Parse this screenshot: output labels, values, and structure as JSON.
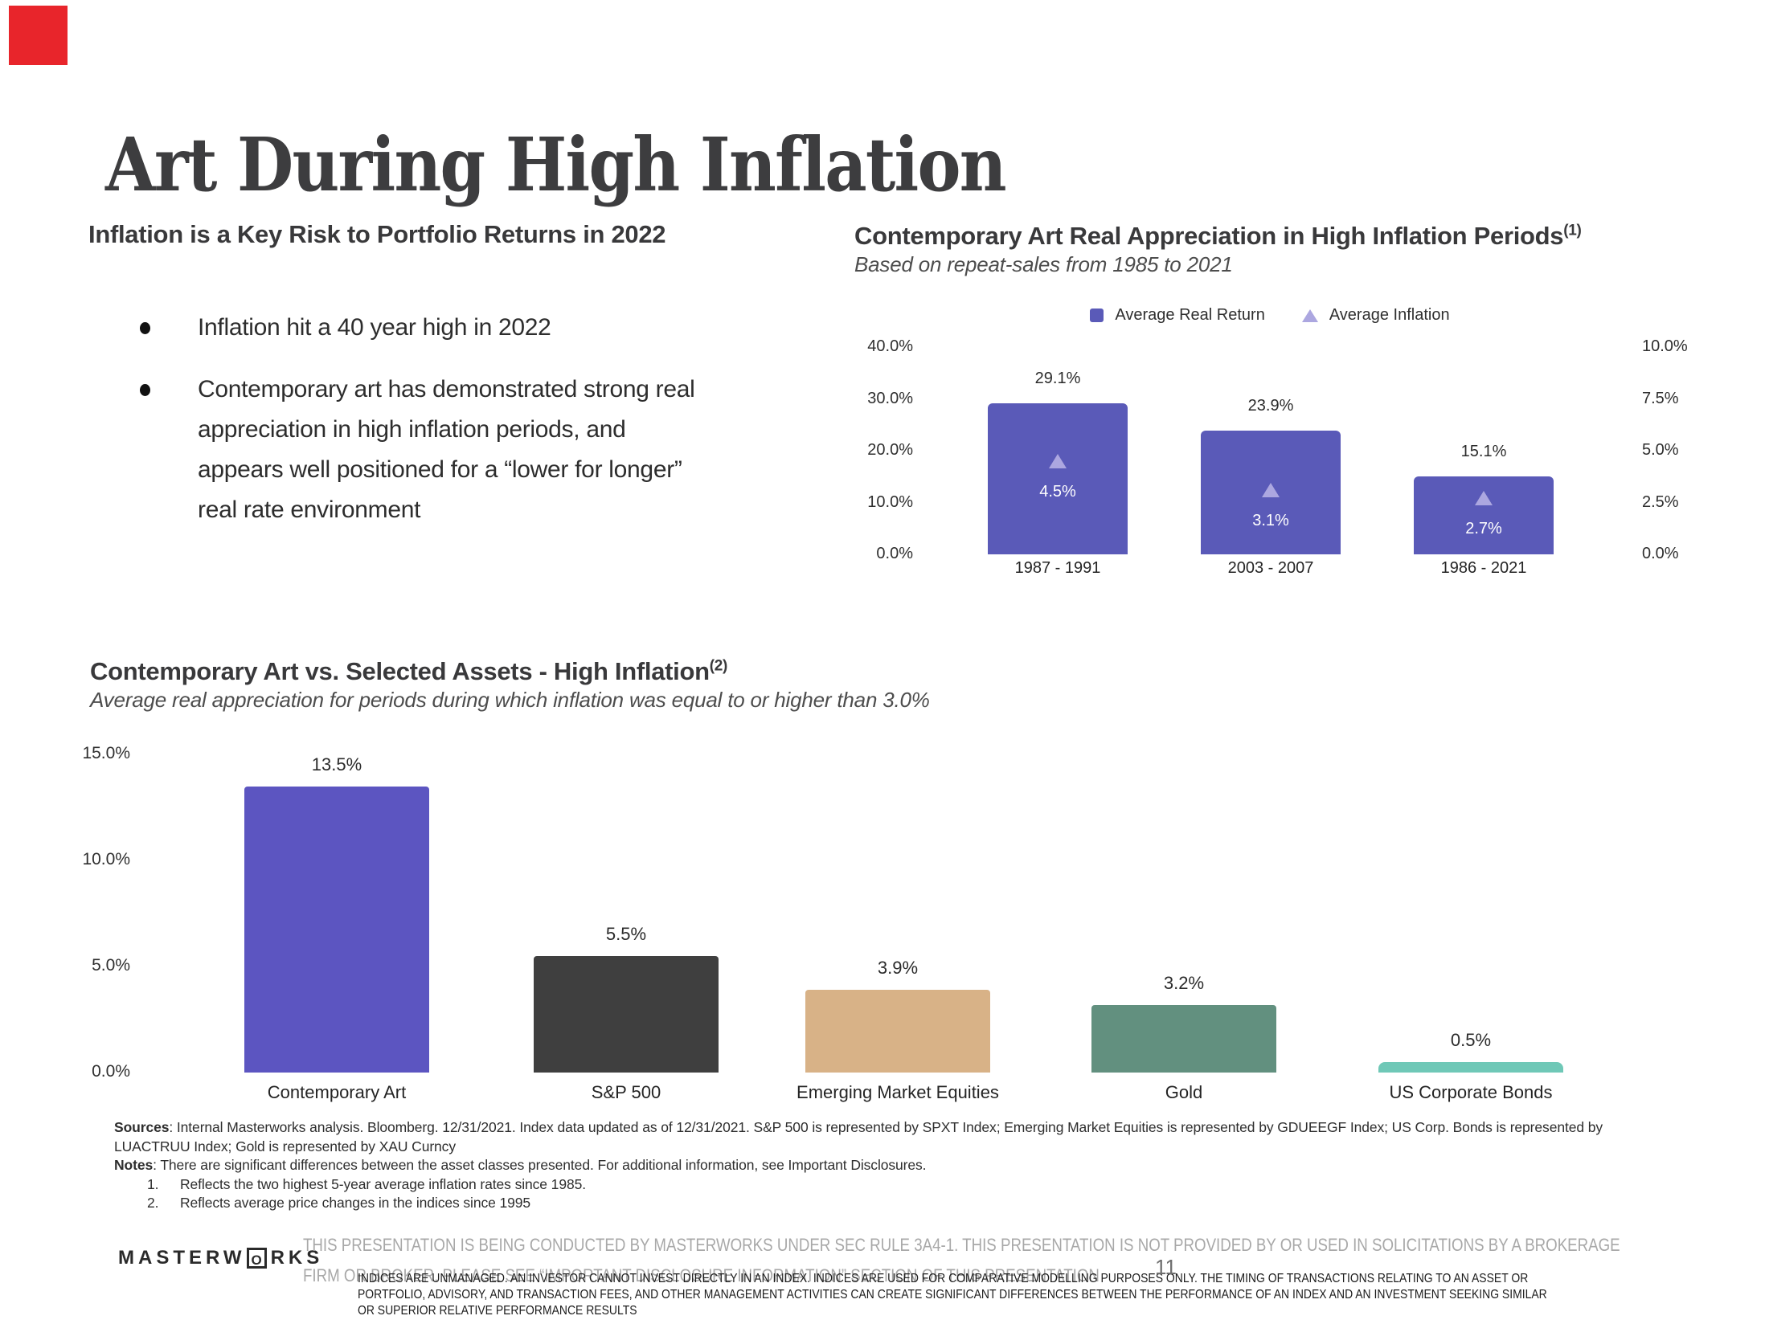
{
  "slide": {
    "title": "Art During High Inflation",
    "accent_red": "#e8252b",
    "page_number": "11"
  },
  "left_section": {
    "heading": "Inflation is a Key Risk to Portfolio Returns in 2022",
    "bullets": [
      {
        "lines": [
          "Inflation hit a 40 year high in 2022"
        ]
      },
      {
        "lines": [
          "Contemporary art has demonstrated strong real",
          "appreciation in high inflation periods, and",
          "appears well positioned for a “lower for longer”",
          "real rate environment"
        ]
      }
    ]
  },
  "chart_data": [
    {
      "type": "bar",
      "title": "Contemporary Art Real Appreciation in High Inflation Periods",
      "title_superscript": "(1)",
      "subtitle": "Based on repeat-sales from 1985 to 2021",
      "categories": [
        "1987 - 1991",
        "2003 - 2007",
        "1986 - 2021"
      ],
      "series": [
        {
          "name": "Average Real Return",
          "marker": "square",
          "color": "#5a5ab8",
          "values": [
            29.1,
            23.9,
            15.1
          ],
          "labels": [
            "29.1%",
            "23.9%",
            "15.1%"
          ]
        },
        {
          "name": "Average Inflation",
          "marker": "triangle",
          "color": "#aca7e0",
          "values": [
            4.5,
            3.1,
            2.7
          ],
          "labels": [
            "4.5%",
            "3.1%",
            "2.7%"
          ]
        }
      ],
      "left_axis": {
        "ticks": [
          "40.0%",
          "30.0%",
          "20.0%",
          "10.0%",
          "0.0%"
        ],
        "min": 0,
        "max": 40
      },
      "right_axis": {
        "ticks": [
          "10.0%",
          "7.5%",
          "5.0%",
          "2.5%",
          "0.0%"
        ],
        "min": 0,
        "max": 10
      },
      "grid": false,
      "legend_position": "top"
    },
    {
      "type": "bar",
      "title": "Contemporary Art vs. Selected Assets - High Inflation",
      "title_superscript": "(2)",
      "subtitle": "Average real appreciation for periods during which inflation was equal to or higher than 3.0%",
      "categories": [
        "Contemporary Art",
        "S&P 500",
        "Emerging Market Equities",
        "Gold",
        "US Corporate Bonds"
      ],
      "values": [
        13.5,
        5.5,
        3.9,
        3.2,
        0.5
      ],
      "labels": [
        "13.5%",
        "5.5%",
        "3.9%",
        "3.2%",
        "0.5%"
      ],
      "colors": [
        "#5c55c1",
        "#3f3f3f",
        "#d8b287",
        "#62907f",
        "#6fc8b7"
      ],
      "ylabel": "",
      "xlabel": "",
      "y_axis": {
        "ticks": [
          "15.0%",
          "10.0%",
          "5.0%",
          "0.0%"
        ],
        "min": 0,
        "max": 15
      },
      "grid": false
    }
  ],
  "footer": {
    "sources_bold": "Sources",
    "sources_rest": ": Internal Masterworks analysis. Bloomberg. 12/31/2021. Index data updated as of 12/31/2021. S&P 500 is represented by SPXT Index; Emerging Market Equities is represented by GDUEEGF Index; US Corp. Bonds is represented by",
    "sources_line2": "LUACTRUU Index; Gold is represented by XAU Curncy",
    "notes_bold": "Notes",
    "notes_rest": ": There are significant differences between the asset classes presented. For additional information, see Important Disclosures.",
    "note_items": [
      {
        "num": "1.",
        "text": "Reflects the two highest 5-year average inflation rates since 1985."
      },
      {
        "num": "2.",
        "text": "Reflects average price changes in the indices since 1995"
      }
    ],
    "logo_part1": "MASTERW",
    "logo_o": "O",
    "logo_part2": "RKS",
    "disclaimer_line1": "THIS PRESENTATION  IS BEING CONDUCTED BY MASTERWORKS UNDER SEC RULE 3A4-1. THIS PRESENTATION  IS NOT PROVIDED BY OR USED IN SOLICITATIONS BY A BROKERAGE",
    "disclaimer_line2": "FIRM OR BROKER. PLEASE SEE “IMPORTANT DISCLOSURE INFORMATION” SECTION OF THIS PRESENTATION",
    "fine_print_lines": [
      "INDICES ARE UNMANAGED. AN INVESTOR CANNOT INVEST DIRECTLY IN AN INDEX. INDICES ARE USED FOR COMPARATIVE MODELLING PURPOSES ONLY. THE TIMING OF TRANSACTIONS RELATING TO AN ASSET OR",
      "PORTFOLIO, ADVISORY, AND TRANSACTION FEES, AND OTHER MANAGEMENT ACTIVITIES CAN CREATE SIGNIFICANT DIFFERENCES BETWEEN THE PERFORMANCE OF AN INDEX AND AN INVESTMENT SEEKING SIMILAR",
      "OR SUPERIOR RELATIVE PERFORMANCE RESULTS"
    ]
  }
}
